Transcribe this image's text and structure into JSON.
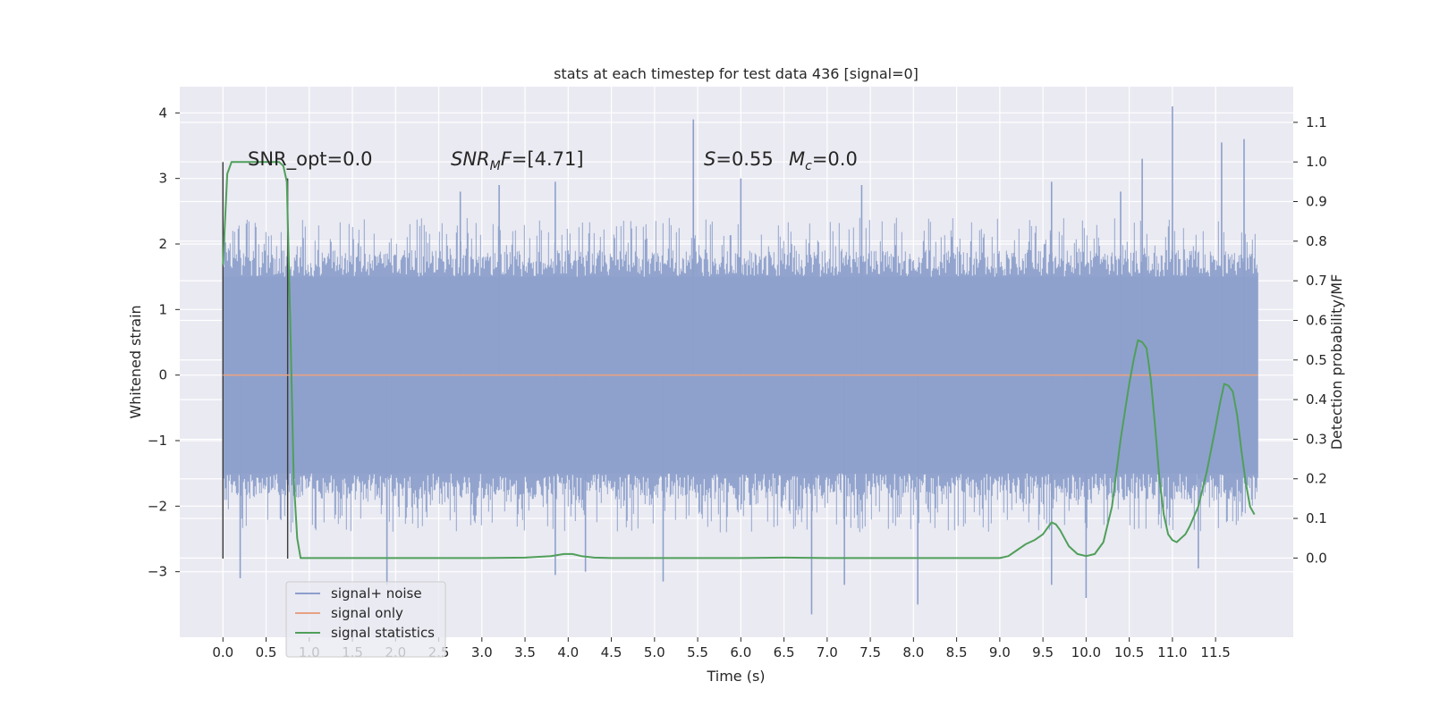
{
  "chart_data": {
    "type": "line",
    "title": "stats at each timestep for test data 436 [signal=0]",
    "xlabel": "Time (s)",
    "ylabel_left": "Whitened strain",
    "ylabel_right": "Detection probability/MF",
    "xlim": [
      -0.5,
      12.4
    ],
    "ylim_left": [
      -4,
      4.4
    ],
    "ylim_right": [
      -0.2,
      1.19
    ],
    "x_ticks": [
      "0.0",
      "0.5",
      "1.0",
      "1.5",
      "2.0",
      "2.5",
      "3.0",
      "3.5",
      "4.0",
      "4.5",
      "5.0",
      "5.5",
      "6.0",
      "6.5",
      "7.0",
      "7.5",
      "8.0",
      "8.5",
      "9.0",
      "9.5",
      "10.0",
      "10.5",
      "11.0",
      "11.5"
    ],
    "y_ticks_left": [
      "4",
      "3",
      "2",
      "1",
      "0",
      "−1",
      "−2",
      "−3"
    ],
    "y_ticks_right": [
      "1.1",
      "1.0",
      "0.9",
      "0.8",
      "0.7",
      "0.6",
      "0.5",
      "0.4",
      "0.3",
      "0.2",
      "0.1",
      "0.0"
    ],
    "grid": true,
    "legend_position": "lower-left",
    "annotations": {
      "snr_opt": "SNR_opt=0.0",
      "snr_mf_main": "SNR",
      "snr_mf_sub": "M",
      "snr_mf_rest": "F",
      "snr_mf_value": "=[4.71]",
      "s_label": "S",
      "s_value": "=0.55",
      "mc_label": "M",
      "mc_sub": "c",
      "mc_value": "=0.0"
    },
    "markers": [
      {
        "x": 0.0,
        "y_range": [
          -2.8,
          3.25
        ]
      },
      {
        "x": 0.75,
        "y_range": [
          -2.8,
          3.0
        ]
      }
    ],
    "series": [
      {
        "name": "signal+ noise",
        "color": "#8da0cb",
        "style": "noise",
        "x_range": [
          0.0,
          11.99
        ],
        "band": [
          -1.5,
          1.5
        ],
        "spikes": [
          {
            "x": 5.45,
            "y": 3.9
          },
          {
            "x": 11.0,
            "y": 4.1
          },
          {
            "x": 11.83,
            "y": 3.6
          },
          {
            "x": 11.57,
            "y": 3.55
          },
          {
            "x": 10.65,
            "y": 3.3
          },
          {
            "x": 6.82,
            "y": -3.65
          },
          {
            "x": 8.05,
            "y": -3.5
          },
          {
            "x": 10.0,
            "y": -3.4
          },
          {
            "x": 0.2,
            "y": -3.1
          },
          {
            "x": 1.9,
            "y": -3.2
          },
          {
            "x": 5.1,
            "y": -3.15
          },
          {
            "x": 3.85,
            "y": -3.05
          },
          {
            "x": 4.2,
            "y": -3.0
          },
          {
            "x": 7.2,
            "y": -3.2
          },
          {
            "x": 9.6,
            "y": -3.2
          },
          {
            "x": 11.3,
            "y": -2.95
          },
          {
            "x": 2.75,
            "y": 2.8
          },
          {
            "x": 3.2,
            "y": 2.9
          },
          {
            "x": 3.85,
            "y": 2.95
          },
          {
            "x": 6.0,
            "y": 3.0
          },
          {
            "x": 7.4,
            "y": 2.9
          },
          {
            "x": 9.6,
            "y": 2.95
          },
          {
            "x": 10.4,
            "y": 2.8
          }
        ]
      },
      {
        "name": "signal only",
        "color": "#e7a283",
        "x": [
          0.0,
          11.99
        ],
        "y": [
          0.0,
          0.0
        ]
      },
      {
        "name": "signal statistics",
        "color": "#4f9f5a",
        "axis": "right",
        "x": [
          0.0,
          0.05,
          0.1,
          0.15,
          0.2,
          0.3,
          0.4,
          0.5,
          0.6,
          0.65,
          0.7,
          0.74,
          0.78,
          0.82,
          0.86,
          0.9,
          1.0,
          1.5,
          2.0,
          2.5,
          3.0,
          3.5,
          3.8,
          3.95,
          4.05,
          4.15,
          4.3,
          4.5,
          5.0,
          5.5,
          6.0,
          6.5,
          7.0,
          7.5,
          8.0,
          8.5,
          9.0,
          9.1,
          9.2,
          9.3,
          9.4,
          9.5,
          9.55,
          9.6,
          9.65,
          9.7,
          9.75,
          9.8,
          9.9,
          10.0,
          10.1,
          10.2,
          10.3,
          10.4,
          10.5,
          10.55,
          10.6,
          10.65,
          10.7,
          10.75,
          10.8,
          10.85,
          10.9,
          10.95,
          11.0,
          11.05,
          11.1,
          11.15,
          11.2,
          11.3,
          11.4,
          11.5,
          11.55,
          11.6,
          11.65,
          11.7,
          11.75,
          11.8,
          11.85,
          11.9,
          11.95
        ],
        "y": [
          0.74,
          0.97,
          1.0,
          1.0,
          1.0,
          1.0,
          1.0,
          1.0,
          1.0,
          1.0,
          0.99,
          0.95,
          0.6,
          0.2,
          0.05,
          0.0,
          0.0,
          0.0,
          0.0,
          0.0,
          0.0,
          0.001,
          0.005,
          0.01,
          0.01,
          0.005,
          0.001,
          0.0,
          0.0,
          0.0,
          0.0,
          0.001,
          0.0,
          0.0,
          0.0,
          0.0,
          0.0,
          0.005,
          0.02,
          0.035,
          0.045,
          0.06,
          0.075,
          0.09,
          0.085,
          0.07,
          0.05,
          0.03,
          0.01,
          0.005,
          0.01,
          0.04,
          0.13,
          0.3,
          0.44,
          0.5,
          0.55,
          0.545,
          0.53,
          0.45,
          0.33,
          0.2,
          0.11,
          0.06,
          0.045,
          0.04,
          0.05,
          0.06,
          0.08,
          0.13,
          0.22,
          0.33,
          0.39,
          0.44,
          0.435,
          0.42,
          0.36,
          0.27,
          0.19,
          0.13,
          0.11
        ]
      }
    ]
  }
}
